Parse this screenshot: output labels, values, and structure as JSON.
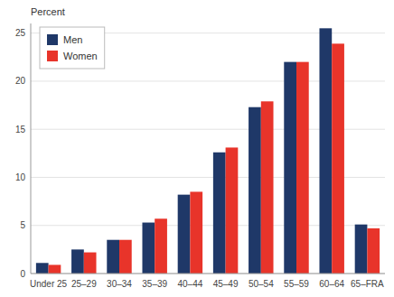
{
  "chart_data": {
    "type": "bar",
    "ylabel": "Percent",
    "categories": [
      "Under 25",
      "25–29",
      "30–34",
      "35–39",
      "40–44",
      "45–49",
      "50–54",
      "55–59",
      "60–64",
      "65–FRA"
    ],
    "series": [
      {
        "name": "Men",
        "color": "#1f3868",
        "values": [
          1.1,
          2.5,
          3.5,
          5.3,
          8.2,
          12.6,
          17.3,
          22.0,
          25.5,
          5.1
        ]
      },
      {
        "name": "Women",
        "color": "#e8342a",
        "values": [
          0.9,
          2.2,
          3.5,
          5.7,
          8.5,
          13.1,
          17.9,
          22.0,
          23.9,
          4.7
        ]
      }
    ],
    "ylim": [
      0,
      26
    ],
    "yticks": [
      0,
      5,
      10,
      15,
      20,
      25
    ],
    "grid": true,
    "legend": "top-left"
  }
}
